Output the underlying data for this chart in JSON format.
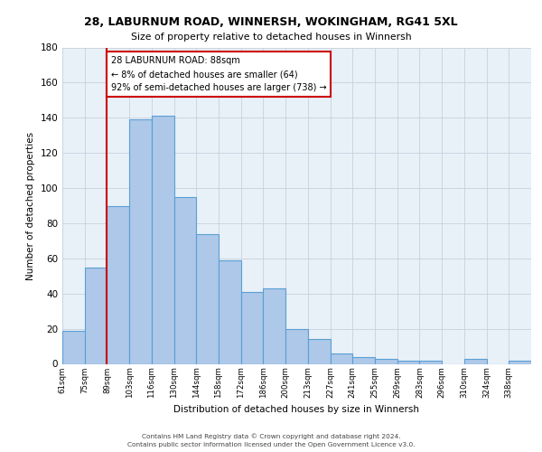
{
  "title_line1": "28, LABURNUM ROAD, WINNERSH, WOKINGHAM, RG41 5XL",
  "title_line2": "Size of property relative to detached houses in Winnersh",
  "xlabel": "Distribution of detached houses by size in Winnersh",
  "ylabel": "Number of detached properties",
  "bin_labels": [
    "61sqm",
    "75sqm",
    "89sqm",
    "103sqm",
    "116sqm",
    "130sqm",
    "144sqm",
    "158sqm",
    "172sqm",
    "186sqm",
    "200sqm",
    "213sqm",
    "227sqm",
    "241sqm",
    "255sqm",
    "269sqm",
    "283sqm",
    "296sqm",
    "310sqm",
    "324sqm",
    "338sqm"
  ],
  "bar_values": [
    19,
    55,
    90,
    139,
    141,
    95,
    74,
    59,
    41,
    43,
    20,
    14,
    6,
    4,
    3,
    2,
    2,
    0,
    3,
    0,
    2
  ],
  "bar_color": "#adc8e8",
  "bar_edge_color": "#5a9fd4",
  "bar_edge_width": 0.8,
  "grid_color": "#c8d0dc",
  "background_color": "#e8f0f8",
  "red_line_x": 2,
  "annotation_line1": "28 LABURNUM ROAD: 88sqm",
  "annotation_line2": "← 8% of detached houses are smaller (64)",
  "annotation_line3": "92% of semi-detached houses are larger (738) →",
  "annotation_box_color": "#ffffff",
  "annotation_box_edge": "#cc0000",
  "red_line_color": "#cc0000",
  "ylim": [
    0,
    180
  ],
  "yticks": [
    0,
    20,
    40,
    60,
    80,
    100,
    120,
    140,
    160,
    180
  ],
  "footer_line1": "Contains HM Land Registry data © Crown copyright and database right 2024.",
  "footer_line2": "Contains public sector information licensed under the Open Government Licence v3.0."
}
